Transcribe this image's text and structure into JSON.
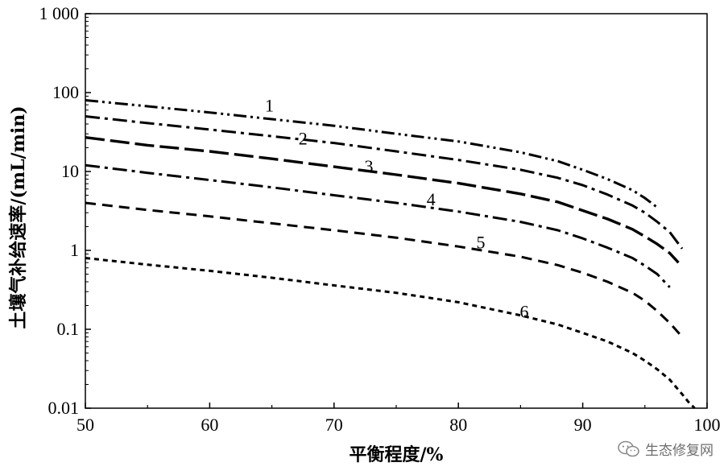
{
  "chart_data": {
    "type": "line",
    "title": "",
    "xlabel": "平衡程度/%",
    "ylabel": "土壤气补给速率/(mL/min)",
    "xlim": [
      50,
      100
    ],
    "ylim": [
      0.01,
      1000
    ],
    "yscale": "log",
    "x_ticks": [
      50,
      60,
      70,
      80,
      90,
      100
    ],
    "x_tick_labels": [
      "50",
      "60",
      "70",
      "80",
      "90",
      "100"
    ],
    "y_ticks": [
      0.01,
      0.1,
      1,
      10,
      100,
      1000
    ],
    "y_tick_labels": [
      "0.01",
      "0.1",
      "1",
      "10",
      "100",
      "1 000"
    ],
    "grid": false,
    "legend": "none",
    "series": [
      {
        "label": "1",
        "style": "dash-dot-dot",
        "x": [
          50,
          55,
          60,
          65,
          70,
          75,
          80,
          85,
          88,
          90,
          92,
          94,
          95,
          96
        ],
        "y": [
          80,
          67,
          56,
          46,
          38,
          30,
          24,
          17.5,
          13.5,
          10.5,
          8,
          5.8,
          4.6,
          3.5
        ]
      },
      {
        "label": "2",
        "style": "dash-dot",
        "x": [
          50,
          55,
          60,
          65,
          70,
          75,
          80,
          85,
          88,
          90,
          92,
          94,
          95,
          96,
          97,
          98
        ],
        "y": [
          50,
          41,
          34,
          28,
          23,
          18,
          14,
          10.5,
          8.3,
          6.7,
          5.1,
          3.7,
          3.0,
          2.3,
          1.7,
          1.05
        ]
      },
      {
        "label": "3",
        "style": "long-dash",
        "x": [
          50,
          55,
          60,
          65,
          70,
          75,
          80,
          85,
          88,
          90,
          92,
          94,
          95,
          96,
          97,
          97.7
        ],
        "y": [
          27,
          21.5,
          18,
          14.5,
          11.5,
          9.1,
          7.1,
          5.2,
          4.1,
          3.2,
          2.5,
          1.85,
          1.5,
          1.2,
          0.92,
          0.7
        ]
      },
      {
        "label": "4",
        "style": "dash-dot",
        "x": [
          50,
          55,
          60,
          65,
          70,
          75,
          80,
          85,
          88,
          90,
          92,
          94,
          95,
          96,
          97
        ],
        "y": [
          12,
          9.6,
          7.8,
          6.3,
          5.0,
          4.0,
          3.1,
          2.3,
          1.8,
          1.42,
          1.08,
          0.8,
          0.64,
          0.5,
          0.34
        ]
      },
      {
        "label": "5",
        "style": "dash",
        "x": [
          50,
          55,
          60,
          65,
          70,
          75,
          80,
          85,
          88,
          90,
          92,
          94,
          95,
          96,
          97,
          98
        ],
        "y": [
          4.0,
          3.25,
          2.7,
          2.2,
          1.8,
          1.45,
          1.12,
          0.83,
          0.65,
          0.52,
          0.4,
          0.29,
          0.23,
          0.17,
          0.12,
          0.08
        ]
      },
      {
        "label": "6",
        "style": "short-dash",
        "x": [
          50,
          55,
          60,
          65,
          70,
          75,
          80,
          85,
          88,
          90,
          92,
          94,
          95,
          96,
          97,
          98,
          98.5,
          99
        ],
        "y": [
          0.8,
          0.66,
          0.55,
          0.45,
          0.36,
          0.29,
          0.22,
          0.15,
          0.115,
          0.09,
          0.07,
          0.05,
          0.04,
          0.031,
          0.023,
          0.015,
          0.012,
          0.01
        ]
      }
    ],
    "annotations": [
      {
        "text": "1",
        "x": 64.8,
        "y": 68
      },
      {
        "text": "2",
        "x": 67.5,
        "y": 26
      },
      {
        "text": "3",
        "x": 72.8,
        "y": 11.5
      },
      {
        "text": "4",
        "x": 77.8,
        "y": 4.4
      },
      {
        "text": "5",
        "x": 81.8,
        "y": 1.25
      },
      {
        "text": "6",
        "x": 85.3,
        "y": 0.165
      }
    ]
  },
  "watermark": {
    "text": "生态修复网",
    "icon": "wechat-icon"
  }
}
